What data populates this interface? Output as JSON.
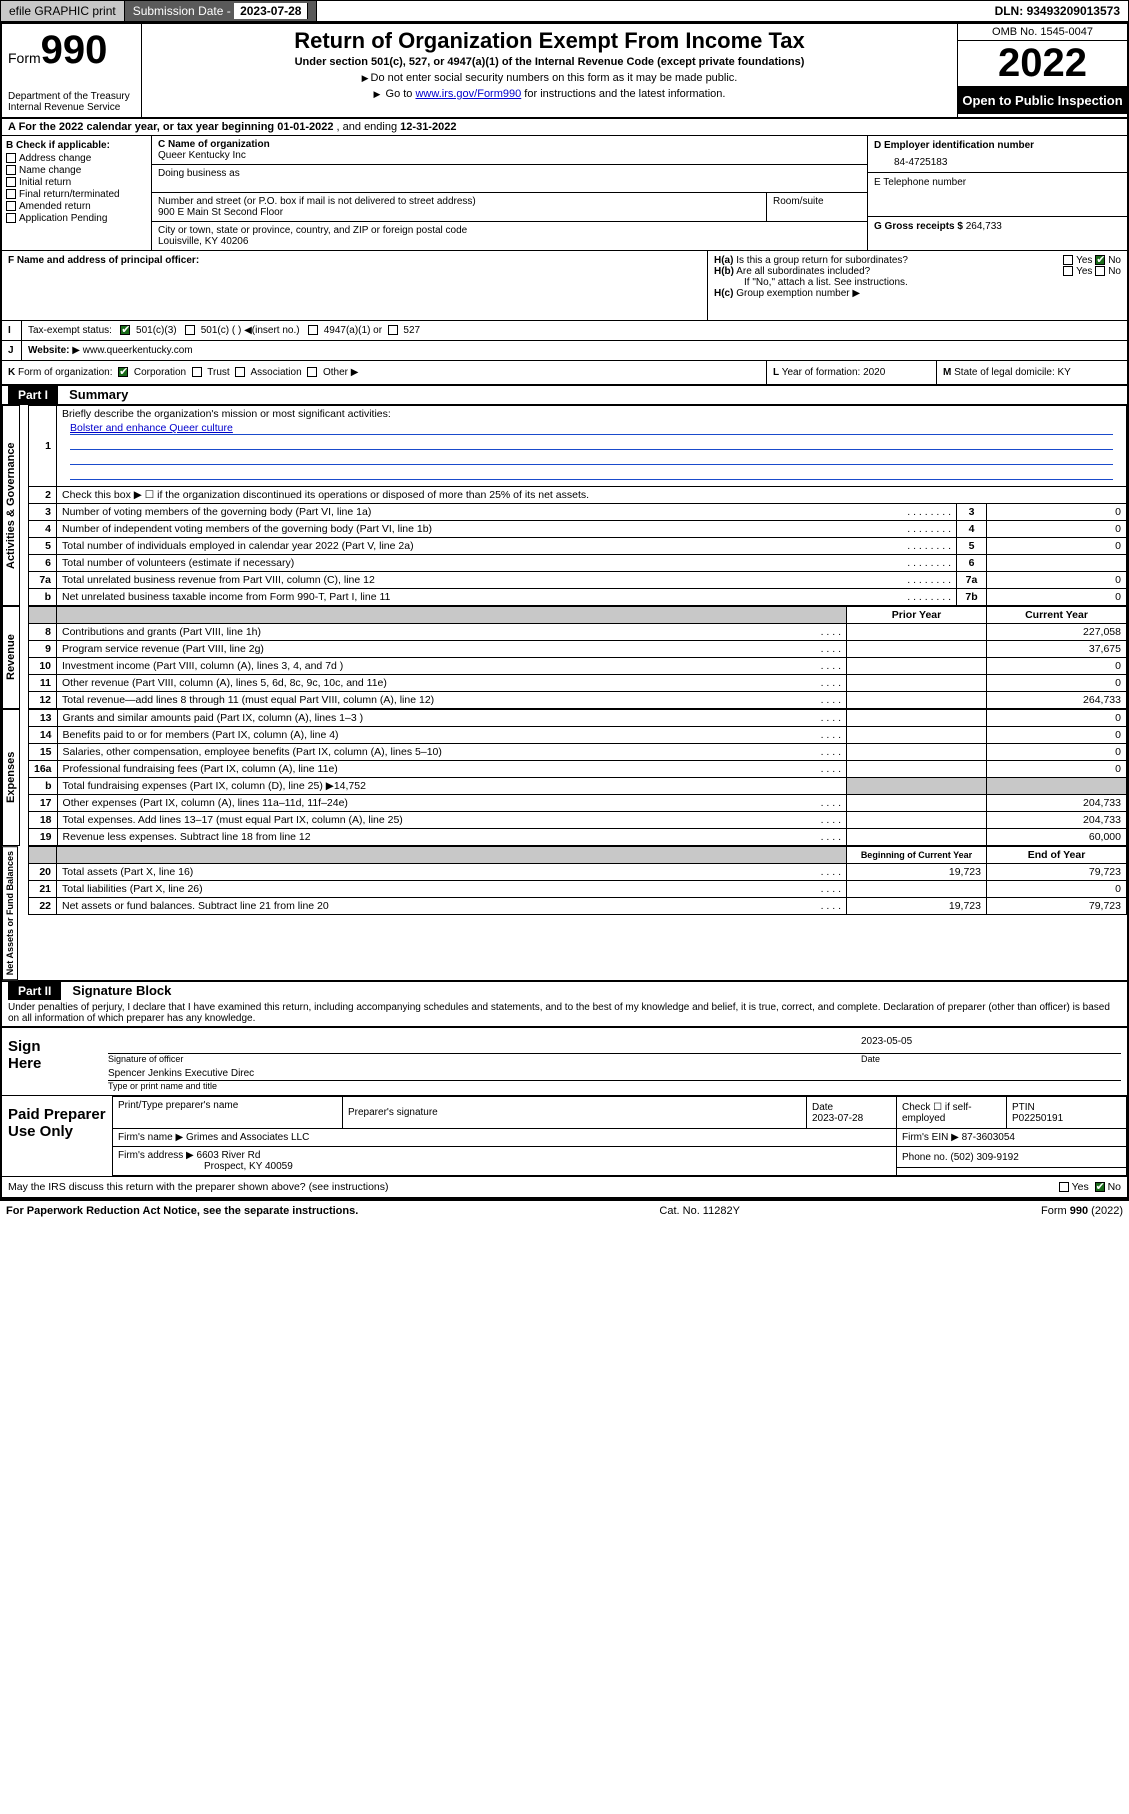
{
  "topbar": {
    "efile": "efile GRAPHIC print",
    "submission_label": "Submission Date - ",
    "submission_date": "2023-07-28",
    "dln_label": "DLN: ",
    "dln": "93493209013573"
  },
  "header": {
    "form_prefix": "Form",
    "form_number": "990",
    "dept": "Department of the Treasury",
    "irs": "Internal Revenue Service",
    "title": "Return of Organization Exempt From Income Tax",
    "subtitle": "Under section 501(c), 527, or 4947(a)(1) of the Internal Revenue Code (except private foundations)",
    "note1": "Do not enter social security numbers on this form as it may be made public.",
    "note2_prefix": "Go to ",
    "note2_link": "www.irs.gov/Form990",
    "note2_suffix": " for instructions and the latest information.",
    "omb": "OMB No. 1545-0047",
    "year": "2022",
    "inspection": "Open to Public Inspection"
  },
  "row_a": {
    "text_a": "A For the 2022 calendar year, or tax year beginning ",
    "begin": "01-01-2022",
    "text_b": " , and ending ",
    "end": "12-31-2022"
  },
  "col_b": {
    "header": "B Check if applicable:",
    "items": [
      "Address change",
      "Name change",
      "Initial return",
      "Final return/terminated",
      "Amended return",
      "Application Pending"
    ]
  },
  "col_c": {
    "name_label": "C Name of organization",
    "name": "Queer Kentucky Inc",
    "dba_label": "Doing business as",
    "addr_label": "Number and street (or P.O. box if mail is not delivered to street address)",
    "room_label": "Room/suite",
    "addr": "900 E Main St Second Floor",
    "city_label": "City or town, state or province, country, and ZIP or foreign postal code",
    "city": "Louisville, KY  40206"
  },
  "col_d": {
    "ein_label": "D Employer identification number",
    "ein": "84-4725183",
    "phone_label": "E Telephone number",
    "gross_label": "G Gross receipts $ ",
    "gross": "264,733"
  },
  "row_f": {
    "f_label": "F Name and address of principal officer:",
    "ha_label": "H(a)",
    "ha_text": "Is this a group return for subordinates?",
    "hb_label": "H(b)",
    "hb_text": "Are all subordinates included?",
    "hb_note": "If \"No,\" attach a list. See instructions.",
    "hc_label": "H(c)",
    "hc_text": "Group exemption number",
    "yes": "Yes",
    "no": "No"
  },
  "row_i": {
    "label": "I",
    "text": "Tax-exempt status:",
    "opt1": "501(c)(3)",
    "opt2": "501(c) (  )",
    "opt2_note": "(insert no.)",
    "opt3": "4947(a)(1) or",
    "opt4": "527"
  },
  "row_j": {
    "label": "J",
    "text": "Website:",
    "value": "www.queerkentucky.com"
  },
  "row_k": {
    "label": "K",
    "text": "Form of organization:",
    "opts": [
      "Corporation",
      "Trust",
      "Association",
      "Other"
    ],
    "l_label": "L",
    "l_text": "Year of formation: ",
    "l_val": "2020",
    "m_label": "M",
    "m_text": "State of legal domicile: ",
    "m_val": "KY"
  },
  "parts": {
    "p1": {
      "num": "Part I",
      "title": "Summary"
    },
    "p2": {
      "num": "Part II",
      "title": "Signature Block"
    }
  },
  "summary": {
    "q1": "Briefly describe the organization's mission or most significant activities:",
    "mission": "Bolster and enhance Queer culture",
    "q2": "Check this box ▶ ☐  if the organization discontinued its operations or disposed of more than 25% of its net assets.",
    "lines_gov": [
      {
        "n": "3",
        "t": "Number of voting members of the governing body (Part VI, line 1a)",
        "c": "3",
        "v": "0"
      },
      {
        "n": "4",
        "t": "Number of independent voting members of the governing body (Part VI, line 1b)",
        "c": "4",
        "v": "0"
      },
      {
        "n": "5",
        "t": "Total number of individuals employed in calendar year 2022 (Part V, line 2a)",
        "c": "5",
        "v": "0"
      },
      {
        "n": "6",
        "t": "Total number of volunteers (estimate if necessary)",
        "c": "6",
        "v": ""
      },
      {
        "n": "7a",
        "t": "Total unrelated business revenue from Part VIII, column (C), line 12",
        "c": "7a",
        "v": "0"
      },
      {
        "n": "b",
        "t": "Net unrelated business taxable income from Form 990-T, Part I, line 11",
        "c": "7b",
        "v": "0"
      }
    ],
    "prior_year": "Prior Year",
    "current_year": "Current Year",
    "lines_rev": [
      {
        "n": "8",
        "t": "Contributions and grants (Part VIII, line 1h)",
        "py": "",
        "cy": "227,058"
      },
      {
        "n": "9",
        "t": "Program service revenue (Part VIII, line 2g)",
        "py": "",
        "cy": "37,675"
      },
      {
        "n": "10",
        "t": "Investment income (Part VIII, column (A), lines 3, 4, and 7d )",
        "py": "",
        "cy": "0"
      },
      {
        "n": "11",
        "t": "Other revenue (Part VIII, column (A), lines 5, 6d, 8c, 9c, 10c, and 11e)",
        "py": "",
        "cy": "0"
      },
      {
        "n": "12",
        "t": "Total revenue—add lines 8 through 11 (must equal Part VIII, column (A), line 12)",
        "py": "",
        "cy": "264,733"
      }
    ],
    "lines_exp": [
      {
        "n": "13",
        "t": "Grants and similar amounts paid (Part IX, column (A), lines 1–3 )",
        "py": "",
        "cy": "0"
      },
      {
        "n": "14",
        "t": "Benefits paid to or for members (Part IX, column (A), line 4)",
        "py": "",
        "cy": "0"
      },
      {
        "n": "15",
        "t": "Salaries, other compensation, employee benefits (Part IX, column (A), lines 5–10)",
        "py": "",
        "cy": "0"
      },
      {
        "n": "16a",
        "t": "Professional fundraising fees (Part IX, column (A), line 11e)",
        "py": "",
        "cy": "0"
      }
    ],
    "line16b_n": "b",
    "line16b_t": "Total fundraising expenses (Part IX, column (D), line 25) ▶",
    "line16b_v": "14,752",
    "lines_exp2": [
      {
        "n": "17",
        "t": "Other expenses (Part IX, column (A), lines 11a–11d, 11f–24e)",
        "py": "",
        "cy": "204,733"
      },
      {
        "n": "18",
        "t": "Total expenses. Add lines 13–17 (must equal Part IX, column (A), line 25)",
        "py": "",
        "cy": "204,733"
      },
      {
        "n": "19",
        "t": "Revenue less expenses. Subtract line 18 from line 12",
        "py": "",
        "cy": "60,000"
      }
    ],
    "begin_year": "Beginning of Current Year",
    "end_year": "End of Year",
    "lines_net": [
      {
        "n": "20",
        "t": "Total assets (Part X, line 16)",
        "py": "19,723",
        "cy": "79,723"
      },
      {
        "n": "21",
        "t": "Total liabilities (Part X, line 26)",
        "py": "",
        "cy": "0"
      },
      {
        "n": "22",
        "t": "Net assets or fund balances. Subtract line 21 from line 20",
        "py": "19,723",
        "cy": "79,723"
      }
    ],
    "vlabels": {
      "gov": "Activities & Governance",
      "rev": "Revenue",
      "exp": "Expenses",
      "net": "Net Assets or Fund Balances"
    }
  },
  "sig": {
    "penalty": "Under penalties of perjury, I declare that I have examined this return, including accompanying schedules and statements, and to the best of my knowledge and belief, it is true, correct, and complete. Declaration of preparer (other than officer) is based on all information of which preparer has any knowledge.",
    "sign_here": "Sign Here",
    "sig_officer": "Signature of officer",
    "date_label": "Date",
    "date": "2023-05-05",
    "name_title_label": "Type or print name and title",
    "name_title": "Spencer Jenkins Executive Direc",
    "paid": "Paid Preparer Use Only",
    "prep_name_label": "Print/Type preparer's name",
    "prep_sig_label": "Preparer's signature",
    "prep_date_label": "Date",
    "prep_date": "2023-07-28",
    "check_if": "Check ☐ if self-employed",
    "ptin_label": "PTIN",
    "ptin": "P02250191",
    "firm_name_label": "Firm's name   ▶ ",
    "firm_name": "Grimes and Associates LLC",
    "firm_ein_label": "Firm's EIN ▶ ",
    "firm_ein": "87-3603054",
    "firm_addr_label": "Firm's address ▶ ",
    "firm_addr1": "6603 River Rd",
    "firm_addr2": "Prospect, KY  40059",
    "phone_label": "Phone no. ",
    "phone": "(502) 309-9192",
    "may_irs": "May the IRS discuss this return with the preparer shown above? (see instructions)"
  },
  "footer": {
    "left": "For Paperwork Reduction Act Notice, see the separate instructions.",
    "mid": "Cat. No. 11282Y",
    "right_a": "Form ",
    "right_b": "990",
    "right_c": " (2022)"
  }
}
